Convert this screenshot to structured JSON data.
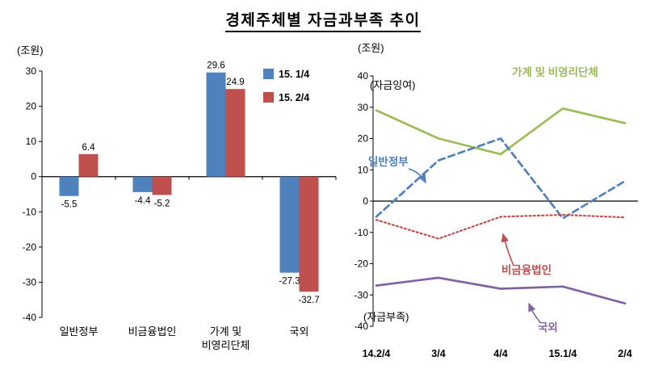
{
  "title": "경제주체별 자금과부족 추이",
  "chart_data": [
    {
      "type": "bar",
      "panel": "left",
      "unit_label": "(조원)",
      "categories": [
        "일반정부",
        "비금융법인",
        "가계 및\n비영리단체",
        "국외"
      ],
      "series": [
        {
          "name": "15. 1/4",
          "color": "#4F81BD",
          "values": [
            -5.5,
            -4.4,
            29.6,
            -27.3
          ]
        },
        {
          "name": "15. 2/4",
          "color": "#C0504D",
          "values": [
            6.4,
            -5.2,
            24.9,
            -32.7
          ]
        }
      ],
      "ylim": [
        -40,
        30
      ],
      "ytick_step": 10,
      "grid": false,
      "legend_position": "top-right",
      "value_labels": [
        "-5.5",
        "6.4",
        "-4.4",
        "-5.2",
        "29.6",
        "24.9",
        "-27.3",
        "-32.7"
      ]
    },
    {
      "type": "line",
      "panel": "right",
      "unit_label": "(조원)",
      "x": [
        "14.2/4",
        "3/4",
        "4/4",
        "15.1/4",
        "2/4"
      ],
      "series": [
        {
          "name": "가계 및 비영리단체",
          "color": "#9BBB59",
          "line_style": "solid",
          "values": [
            29,
            20,
            15,
            29.6,
            24.9
          ]
        },
        {
          "name": "일반정부",
          "color": "#4F81BD",
          "line_style": "dashed",
          "values": [
            -5,
            13,
            20,
            -5.5,
            6.4
          ]
        },
        {
          "name": "비금융법인",
          "color": "#C0504D",
          "line_style": "dotted",
          "values": [
            -6,
            -12,
            -5,
            -4.4,
            -5.2
          ]
        },
        {
          "name": "국외",
          "color": "#8064A2",
          "line_style": "solid",
          "values": [
            -27,
            -24.5,
            -28,
            -27.3,
            -32.7
          ]
        }
      ],
      "ylim": [
        -40,
        40
      ],
      "ytick_step": 10,
      "grid": false,
      "annotations": [
        {
          "text": "(자금잉여)"
        },
        {
          "text": "(자금부족)"
        }
      ]
    }
  ]
}
